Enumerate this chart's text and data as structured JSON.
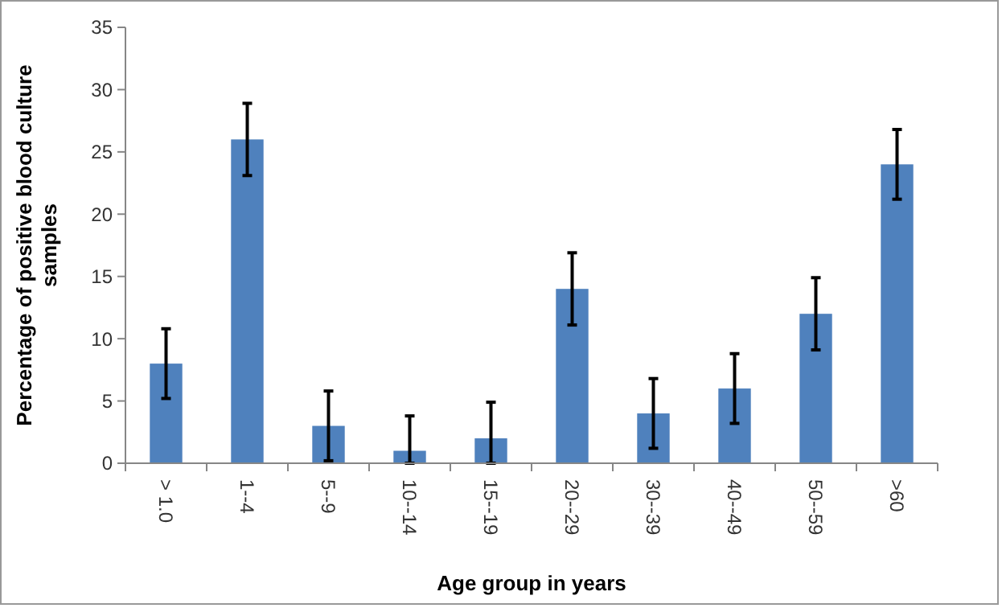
{
  "chart_data": {
    "type": "bar",
    "xlabel": "Age group in years",
    "ylabel": "Percentage of positive blood culture samples",
    "categories": [
      "> 1.0",
      "1--4",
      "5--9",
      "10--14",
      "15--19",
      "20--29",
      "30--39",
      "40--49",
      "50--59",
      ">60"
    ],
    "values": [
      8,
      26,
      3,
      1,
      2,
      14,
      4,
      6,
      12,
      24
    ],
    "errors": [
      2.8,
      2.9,
      2.8,
      [
        0,
        3.8
      ],
      [
        0,
        4.9
      ],
      2.9,
      2.8,
      2.8,
      2.9,
      2.8
    ],
    "color": "#4f81bd",
    "ylim": [
      0,
      35
    ],
    "yticks": [
      0,
      5,
      10,
      15,
      20,
      25,
      30,
      35
    ],
    "grid": false
  }
}
